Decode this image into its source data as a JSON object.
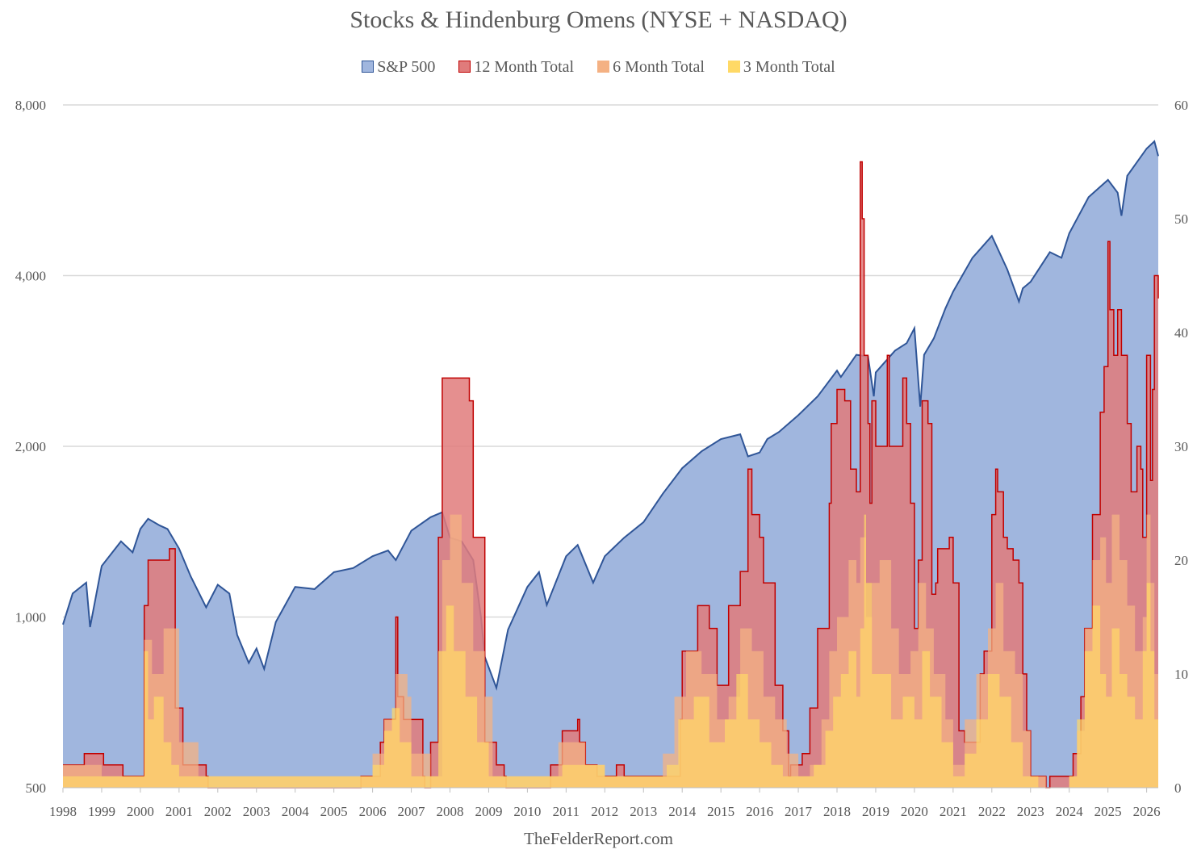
{
  "chart_data": {
    "type": "area",
    "title": "Stocks & Hindenburg Omens (NYSE + NASDAQ)",
    "legend_position": "top",
    "grid": true,
    "colors": {
      "sp500_fill": "#a0b6de",
      "sp500_line": "#2f5597",
      "m12_fill": "#e07b7b",
      "m12_line": "#c00000",
      "m6_fill": "#f4b183",
      "m3_fill": "#ffd966"
    },
    "legend": [
      {
        "label": "S&P 500",
        "swatch": "#a0b6de",
        "border": "#2f5597"
      },
      {
        "label": "12 Month Total",
        "swatch": "#e07b7b",
        "border": "#c00000"
      },
      {
        "label": "6 Month Total",
        "swatch": "#f4b183",
        "border": "#f4b183"
      },
      {
        "label": "3 Month Total",
        "swatch": "#ffd966",
        "border": "#ffd966"
      }
    ],
    "x_ticks": [
      "1998",
      "1999",
      "2000",
      "2001",
      "2002",
      "2003",
      "2004",
      "2005",
      "2006",
      "2007",
      "2008",
      "2009",
      "2010",
      "2011",
      "2012",
      "2013",
      "2014",
      "2015",
      "2016",
      "2017",
      "2018",
      "2019",
      "2020",
      "2021",
      "2022",
      "2023",
      "2024",
      "2025",
      "2026"
    ],
    "left_axis": {
      "scale": "log",
      "ylim": [
        500,
        8000
      ],
      "ticks": [
        "500",
        "1,000",
        "2,000",
        "4,000",
        "8,000"
      ],
      "tick_values": [
        500,
        1000,
        2000,
        4000,
        8000
      ]
    },
    "right_axis": {
      "scale": "linear",
      "ylim": [
        0,
        60
      ],
      "ticks": [
        "0",
        "10",
        "20",
        "30",
        "40",
        "50",
        "60"
      ],
      "tick_values": [
        0,
        10,
        20,
        30,
        40,
        50,
        60
      ]
    },
    "x_range": [
      1998.0,
      2026.3
    ],
    "series": [
      {
        "name": "S&P 500",
        "axis": "left",
        "x": [
          1998.0,
          1998.25,
          1998.6,
          1998.7,
          1999.0,
          1999.5,
          1999.8,
          2000.0,
          2000.2,
          2000.5,
          2000.7,
          2001.0,
          2001.3,
          2001.7,
          2002.0,
          2002.3,
          2002.5,
          2002.8,
          2003.0,
          2003.2,
          2003.5,
          2004.0,
          2004.5,
          2005.0,
          2005.5,
          2006.0,
          2006.4,
          2006.6,
          2007.0,
          2007.5,
          2007.8,
          2008.0,
          2008.3,
          2008.6,
          2008.8,
          2008.9,
          2009.2,
          2009.5,
          2010.0,
          2010.3,
          2010.5,
          2011.0,
          2011.3,
          2011.7,
          2012.0,
          2012.5,
          2013.0,
          2013.5,
          2014.0,
          2014.5,
          2015.0,
          2015.5,
          2015.7,
          2016.0,
          2016.2,
          2016.5,
          2017.0,
          2017.5,
          2018.0,
          2018.1,
          2018.5,
          2018.8,
          2018.95,
          2019.0,
          2019.5,
          2019.8,
          2020.0,
          2020.15,
          2020.25,
          2020.5,
          2020.8,
          2021.0,
          2021.5,
          2022.0,
          2022.4,
          2022.7,
          2022.8,
          2023.0,
          2023.5,
          2023.8,
          2024.0,
          2024.5,
          2025.0,
          2025.25,
          2025.35,
          2025.5,
          2026.0,
          2026.2,
          2026.3
        ],
        "values": [
          970,
          1100,
          1150,
          960,
          1230,
          1360,
          1300,
          1430,
          1490,
          1450,
          1430,
          1320,
          1180,
          1040,
          1140,
          1100,
          930,
          830,
          880,
          810,
          980,
          1130,
          1120,
          1200,
          1220,
          1280,
          1310,
          1260,
          1420,
          1500,
          1530,
          1380,
          1360,
          1260,
          1000,
          850,
          750,
          950,
          1130,
          1200,
          1050,
          1280,
          1340,
          1150,
          1280,
          1380,
          1470,
          1650,
          1830,
          1960,
          2060,
          2100,
          1920,
          1950,
          2060,
          2120,
          2270,
          2450,
          2720,
          2650,
          2900,
          2880,
          2450,
          2700,
          2950,
          3040,
          3230,
          2350,
          2900,
          3100,
          3500,
          3750,
          4300,
          4700,
          4100,
          3600,
          3800,
          3900,
          4400,
          4300,
          4750,
          5500,
          5900,
          5600,
          5100,
          6000,
          6700,
          6900,
          6500
        ]
      },
      {
        "name": "12 Month Total",
        "axis": "right",
        "x": [
          1998.0,
          1998.5,
          1998.55,
          1999.0,
          1999.05,
          1999.5,
          1999.55,
          1999.85,
          1999.9,
          2000.0,
          2000.1,
          2000.2,
          2000.5,
          2000.75,
          2000.9,
          2001.1,
          2001.2,
          2001.7,
          2001.75,
          2005.6,
          2005.7,
          2006.0,
          2006.2,
          2006.3,
          2006.6,
          2006.65,
          2006.8,
          2007.0,
          2007.3,
          2007.35,
          2007.5,
          2007.7,
          2007.8,
          2007.95,
          2008.0,
          2008.5,
          2008.6,
          2008.9,
          2009.2,
          2009.4,
          2009.45,
          2010.5,
          2010.6,
          2010.9,
          2011.3,
          2011.35,
          2011.5,
          2011.8,
          2011.9,
          2012.3,
          2012.5,
          2013.0,
          2013.3,
          2013.5,
          2013.6,
          2013.95,
          2014.0,
          2014.4,
          2014.6,
          2014.7,
          2014.9,
          2015.2,
          2015.5,
          2015.7,
          2015.8,
          2016.0,
          2016.1,
          2016.4,
          2016.6,
          2016.75,
          2016.8,
          2017.1,
          2017.3,
          2017.5,
          2017.8,
          2017.85,
          2018.0,
          2018.2,
          2018.35,
          2018.5,
          2018.6,
          2018.65,
          2018.7,
          2018.8,
          2018.85,
          2018.9,
          2019.0,
          2019.1,
          2019.3,
          2019.35,
          2019.5,
          2019.7,
          2019.8,
          2019.9,
          2020.0,
          2020.1,
          2020.2,
          2020.3,
          2020.35,
          2020.45,
          2020.55,
          2020.6,
          2020.9,
          2021.0,
          2021.15,
          2021.3,
          2021.5,
          2021.7,
          2021.8,
          2022.0,
          2022.1,
          2022.15,
          2022.3,
          2022.4,
          2022.55,
          2022.7,
          2022.8,
          2022.9,
          2023.0,
          2023.3,
          2023.4,
          2023.5,
          2024.0,
          2024.1,
          2024.3,
          2024.4,
          2024.6,
          2024.8,
          2024.9,
          2025.0,
          2025.05,
          2025.15,
          2025.25,
          2025.35,
          2025.5,
          2025.6,
          2025.75,
          2025.85,
          2025.9,
          2026.0,
          2026.1,
          2026.15,
          2026.2,
          2026.3
        ],
        "values": [
          2,
          2,
          3,
          3,
          2,
          2,
          1,
          1,
          1,
          1,
          16,
          20,
          20,
          21,
          7,
          2,
          2,
          1,
          0,
          0,
          1,
          1,
          4,
          6,
          15,
          8,
          6,
          6,
          1,
          0,
          4,
          22,
          36,
          36,
          36,
          34,
          22,
          4,
          2,
          1,
          0,
          0,
          2,
          5,
          6,
          4,
          2,
          1,
          1,
          2,
          1,
          1,
          1,
          1,
          1,
          6,
          12,
          16,
          16,
          14,
          9,
          16,
          19,
          28,
          24,
          22,
          18,
          9,
          5,
          1,
          2,
          3,
          7,
          14,
          25,
          32,
          35,
          34,
          28,
          26,
          55,
          50,
          38,
          32,
          25,
          34,
          30,
          30,
          38,
          30,
          30,
          36,
          32,
          25,
          14,
          20,
          34,
          34,
          32,
          17,
          18,
          21,
          22,
          18,
          5,
          4,
          4,
          10,
          12,
          24,
          28,
          26,
          22,
          21,
          20,
          18,
          10,
          5,
          1,
          1,
          0,
          1,
          1,
          3,
          8,
          14,
          24,
          33,
          37,
          48,
          42,
          38,
          42,
          38,
          32,
          26,
          30,
          28,
          22,
          38,
          27,
          35,
          45,
          43
        ]
      },
      {
        "name": "6 Month Total",
        "axis": "right",
        "x": [
          1998.0,
          1998.5,
          1999.0,
          1999.5,
          2000.0,
          2000.1,
          2000.3,
          2000.6,
          2000.8,
          2001.0,
          2001.5,
          2005.6,
          2006.0,
          2006.3,
          2006.6,
          2006.9,
          2007.0,
          2007.5,
          2007.8,
          2008.0,
          2008.3,
          2008.6,
          2008.9,
          2009.1,
          2010.5,
          2010.8,
          2011.2,
          2011.5,
          2012.0,
          2013.0,
          2013.5,
          2013.8,
          2014.1,
          2014.5,
          2014.9,
          2015.2,
          2015.5,
          2015.8,
          2016.1,
          2016.4,
          2016.7,
          2017.0,
          2017.3,
          2017.6,
          2017.8,
          2018.0,
          2018.3,
          2018.5,
          2018.6,
          2018.75,
          2018.9,
          2019.1,
          2019.4,
          2019.6,
          2019.9,
          2020.1,
          2020.3,
          2020.5,
          2020.8,
          2021.0,
          2021.3,
          2021.6,
          2021.9,
          2022.1,
          2022.3,
          2022.6,
          2022.8,
          2023.0,
          2023.4,
          2024.0,
          2024.2,
          2024.4,
          2024.6,
          2024.8,
          2024.95,
          2025.1,
          2025.3,
          2025.5,
          2025.7,
          2025.9,
          2026.0,
          2026.1,
          2026.2,
          2026.3
        ],
        "values": [
          2,
          2,
          1,
          1,
          1,
          13,
          10,
          14,
          14,
          4,
          1,
          1,
          3,
          6,
          10,
          8,
          3,
          1,
          20,
          24,
          18,
          12,
          8,
          1,
          1,
          4,
          4,
          2,
          1,
          1,
          3,
          8,
          12,
          10,
          6,
          8,
          14,
          12,
          8,
          6,
          3,
          1,
          2,
          6,
          12,
          15,
          20,
          18,
          22,
          15,
          18,
          20,
          14,
          10,
          12,
          18,
          14,
          10,
          6,
          2,
          6,
          10,
          14,
          18,
          12,
          10,
          5,
          1,
          0,
          1,
          5,
          14,
          20,
          22,
          18,
          24,
          20,
          16,
          12,
          15,
          24,
          18,
          10,
          6
        ]
      },
      {
        "name": "3 Month Total",
        "axis": "right",
        "x": [
          1998.0,
          1998.5,
          1999.0,
          2000.0,
          2000.1,
          2000.2,
          2000.35,
          2000.6,
          2000.8,
          2001.0,
          2005.6,
          2006.0,
          2006.3,
          2006.5,
          2006.7,
          2007.0,
          2007.5,
          2007.7,
          2007.9,
          2008.1,
          2008.4,
          2008.7,
          2009.0,
          2010.5,
          2010.9,
          2011.3,
          2012.0,
          2013.0,
          2013.6,
          2013.9,
          2014.3,
          2014.7,
          2015.1,
          2015.4,
          2015.7,
          2016.0,
          2016.3,
          2016.6,
          2017.0,
          2017.4,
          2017.7,
          2017.9,
          2018.1,
          2018.3,
          2018.5,
          2018.6,
          2018.7,
          2018.75,
          2018.9,
          2019.1,
          2019.4,
          2019.7,
          2020.0,
          2020.2,
          2020.4,
          2020.7,
          2021.0,
          2021.3,
          2021.6,
          2021.9,
          2022.2,
          2022.5,
          2022.8,
          2023.2,
          2024.0,
          2024.2,
          2024.4,
          2024.6,
          2024.8,
          2024.95,
          2025.1,
          2025.3,
          2025.5,
          2025.7,
          2025.9,
          2026.0,
          2026.1,
          2026.2,
          2026.3
        ],
        "values": [
          1,
          1,
          1,
          1,
          12,
          6,
          8,
          4,
          2,
          1,
          1,
          2,
          5,
          7,
          4,
          1,
          1,
          12,
          16,
          12,
          8,
          4,
          1,
          1,
          2,
          2,
          1,
          1,
          2,
          6,
          8,
          4,
          6,
          10,
          6,
          4,
          2,
          1,
          1,
          2,
          5,
          8,
          10,
          12,
          8,
          14,
          24,
          18,
          10,
          10,
          6,
          8,
          6,
          12,
          8,
          4,
          1,
          3,
          6,
          10,
          8,
          4,
          1,
          0,
          1,
          6,
          12,
          16,
          10,
          8,
          14,
          10,
          8,
          6,
          12,
          18,
          12,
          6,
          4
        ]
      }
    ]
  },
  "footer": "TheFelderReport.com"
}
